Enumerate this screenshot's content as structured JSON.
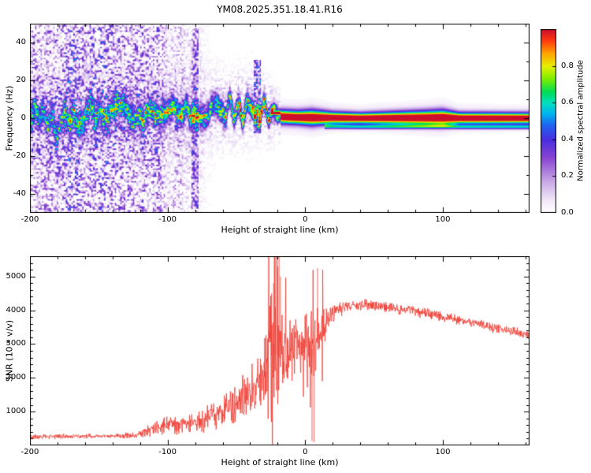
{
  "figure": {
    "background": "#ffffff",
    "text_color": "#000000"
  },
  "chart_data": [
    {
      "type": "heatmap",
      "title": "YM08.2025.351.18.41.R16",
      "xlabel": "Height of straight line (km)",
      "ylabel": "Frequency (Hz)",
      "xlim": [
        -200,
        163
      ],
      "ylim": [
        -50,
        50
      ],
      "xticks": [
        -200,
        -100,
        0,
        100
      ],
      "yticks": [
        -40,
        -20,
        0,
        20,
        40
      ],
      "x_minor_step": 20,
      "y_minor_step": 10,
      "grid": false,
      "colorbar": {
        "label": "Normalized spectral amplitude",
        "range": [
          0,
          1
        ],
        "ticks": [
          0.0,
          0.2,
          0.4,
          0.6,
          0.8
        ],
        "stops": [
          [
            0,
            "#ffffff"
          ],
          [
            0.07,
            "#f2e9f9"
          ],
          [
            0.18,
            "#c6a3e6"
          ],
          [
            0.3,
            "#8a46d2"
          ],
          [
            0.4,
            "#4b2ee0"
          ],
          [
            0.48,
            "#1e66f0"
          ],
          [
            0.54,
            "#00b4f0"
          ],
          [
            0.6,
            "#00e0c0"
          ],
          [
            0.66,
            "#00dd55"
          ],
          [
            0.73,
            "#7bee00"
          ],
          [
            0.8,
            "#e8ee00"
          ],
          [
            0.87,
            "#ffa300"
          ],
          [
            0.94,
            "#ff3a10"
          ],
          [
            1,
            "#cc0e2e"
          ]
        ]
      },
      "ridge_points_xcwas": [
        [
          -200,
          0.5,
          4.5,
          0.42,
          9
        ],
        [
          -180,
          -1.5,
          4.5,
          0.45,
          9
        ],
        [
          -165,
          1.5,
          4.4,
          0.5,
          8
        ],
        [
          -150,
          0.5,
          4.3,
          0.52,
          8
        ],
        [
          -135,
          2,
          4.2,
          0.55,
          7
        ],
        [
          -120,
          1,
          4.1,
          0.58,
          7
        ],
        [
          -105,
          2.5,
          4,
          0.6,
          6.5
        ],
        [
          -90,
          2,
          3.9,
          0.63,
          6
        ],
        [
          -75,
          3.5,
          3.8,
          0.66,
          6
        ],
        [
          -60,
          4.5,
          3.6,
          0.7,
          7
        ],
        [
          -48,
          5.5,
          3.6,
          0.74,
          8.5
        ],
        [
          -38,
          6.5,
          3.5,
          0.8,
          11
        ],
        [
          -30,
          5,
          3.2,
          0.86,
          7
        ],
        [
          -24,
          2.5,
          2.8,
          0.93,
          3.5
        ],
        [
          -18,
          0.8,
          2.3,
          1,
          1.5
        ],
        [
          -5,
          0.4,
          2.3,
          1,
          1
        ],
        [
          5,
          0.3,
          2.6,
          1,
          1
        ],
        [
          20,
          0.2,
          2,
          1,
          0.8
        ],
        [
          40,
          0,
          1.8,
          1,
          0.8
        ],
        [
          88,
          0.2,
          2.4,
          1,
          1
        ],
        [
          100,
          0.3,
          2.6,
          1,
          1
        ],
        [
          112,
          0,
          1.9,
          1,
          0.8
        ],
        [
          163,
          0,
          1.8,
          1,
          0.8
        ]
      ],
      "beaded_until_km": -18,
      "noise": {
        "dense_until_km": -115,
        "fade_out_km": -62,
        "max_level": 0.5,
        "streaks": [
          {
            "x_km": -80,
            "f_min_hz": -48,
            "f_max_hz": 48,
            "level": 0.4
          },
          {
            "x_km": -35,
            "f_min_hz": -8,
            "f_max_hz": 31,
            "level": 0.62
          }
        ]
      },
      "secondary_line": {
        "from_km": 14,
        "offset_hz": -4.6,
        "width_hz": 0.8,
        "level": 0.5
      }
    },
    {
      "type": "line",
      "xlabel": "Height of straight line (km)",
      "ylabel": "SNR (10 * v/v)",
      "xlim": [
        -200,
        163
      ],
      "ylim": [
        0,
        5600
      ],
      "xticks": [
        -200,
        -100,
        0,
        100
      ],
      "yticks": [
        1000,
        2000,
        3000,
        4000,
        5000
      ],
      "x_minor_step": 20,
      "y_minor_step": 200,
      "series": [
        {
          "color": "#ee3a30",
          "envelope_points_xmn": [
            [
              -200,
              260,
              80
            ],
            [
              -170,
              265,
              80
            ],
            [
              -140,
              275,
              85
            ],
            [
              -122,
              300,
              110
            ],
            [
              -115,
              430,
              200
            ],
            [
              -108,
              520,
              260
            ],
            [
              -100,
              600,
              300
            ],
            [
              -92,
              620,
              320
            ],
            [
              -84,
              650,
              340
            ],
            [
              -76,
              700,
              380
            ],
            [
              -68,
              850,
              450
            ],
            [
              -60,
              1000,
              520
            ],
            [
              -53,
              1150,
              600
            ],
            [
              -47,
              1350,
              700
            ],
            [
              -41,
              1550,
              850
            ],
            [
              -36,
              1750,
              1000
            ],
            [
              -31,
              2100,
              1350
            ],
            [
              -27,
              2500,
              1900
            ],
            [
              -23,
              2750,
              2400
            ],
            [
              -19,
              2600,
              2100
            ],
            [
              -15,
              2500,
              1800
            ],
            [
              -11,
              2750,
              1400
            ],
            [
              -7,
              2950,
              1100
            ],
            [
              -3,
              3050,
              1000
            ],
            [
              1,
              3000,
              1250
            ],
            [
              5,
              2850,
              1550
            ],
            [
              9,
              3150,
              1000
            ],
            [
              13,
              3450,
              600
            ],
            [
              17,
              3750,
              400
            ],
            [
              22,
              3980,
              280
            ],
            [
              30,
              4120,
              220
            ],
            [
              45,
              4180,
              190
            ],
            [
              60,
              4100,
              190
            ],
            [
              75,
              4000,
              180
            ],
            [
              90,
              3900,
              180
            ],
            [
              105,
              3760,
              170
            ],
            [
              120,
              3640,
              160
            ],
            [
              135,
              3500,
              160
            ],
            [
              150,
              3380,
              150
            ],
            [
              163,
              3280,
              150
            ]
          ],
          "spikes_xy": [
            [
              -24.5,
              4500
            ],
            [
              -23,
              4800
            ],
            [
              -21.5,
              5600
            ],
            [
              -20,
              5300
            ],
            [
              -19,
              5600
            ],
            [
              -18,
              5000
            ],
            [
              5,
              130
            ],
            [
              6.5,
              95
            ],
            [
              9,
              5250
            ]
          ]
        }
      ]
    }
  ]
}
